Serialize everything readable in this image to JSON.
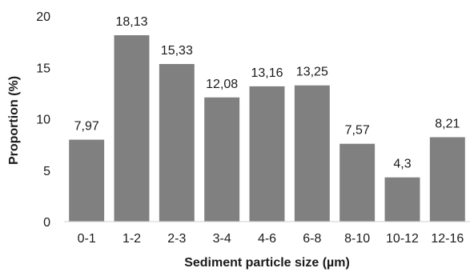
{
  "chart_data": {
    "type": "bar",
    "categories": [
      "0-1",
      "1-2",
      "2-3",
      "3-4",
      "4-6",
      "6-8",
      "8-10",
      "10-12",
      "12-16"
    ],
    "values": [
      7.97,
      18.13,
      15.33,
      12.08,
      13.16,
      13.25,
      7.57,
      4.3,
      8.21
    ],
    "data_labels": [
      "7,97",
      "18,13",
      "15,33",
      "12,08",
      "13,16",
      "13,25",
      "7,57",
      "4,3",
      "8,21"
    ],
    "xlabel": "Sediment particle size (µm)",
    "ylabel": "Proportion (%)",
    "ylim": [
      0,
      20
    ],
    "yticks": [
      "0",
      "5",
      "10",
      "15",
      "20"
    ],
    "grid": false,
    "legend": "none",
    "bar_color": "#808080"
  }
}
